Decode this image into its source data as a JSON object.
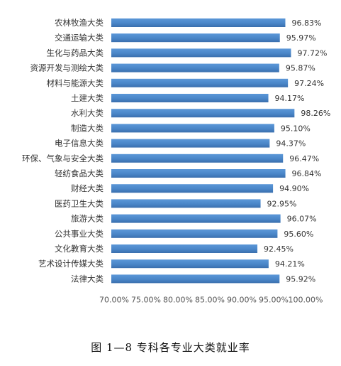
{
  "figure_caption": "图 1—8    专科各专业大类就业率",
  "colors": {
    "bar": "#4a86c8",
    "bar_dark": "#3a6fae",
    "text": "#333333"
  },
  "chart_data": {
    "type": "bar",
    "orientation": "horizontal",
    "title": "",
    "xlabel": "",
    "ylabel": "",
    "categories": [
      "农林牧渔大类",
      "交通运输大类",
      "生化与药品大类",
      "资源开发与测绘大类",
      "材料与能源大类",
      "土建大类",
      "水利大类",
      "制造大类",
      "电子信息大类",
      "环保、气象与安全大类",
      "轻纺食品大类",
      "财经大类",
      "医药卫生大类",
      "旅游大类",
      "公共事业大类",
      "文化教育大类",
      "艺术设计传媒大类",
      "法律大类"
    ],
    "values": [
      96.83,
      95.97,
      97.72,
      95.87,
      97.24,
      94.17,
      98.26,
      95.1,
      94.37,
      96.47,
      96.84,
      94.9,
      92.95,
      96.07,
      95.6,
      92.45,
      94.21,
      95.92
    ],
    "value_labels": [
      "96.83%",
      "95.97%",
      "97.72%",
      "95.87%",
      "97.24%",
      "94.17%",
      "98.26%",
      "95.10%",
      "94.37%",
      "96.47%",
      "96.84%",
      "94.90%",
      "92.95%",
      "96.07%",
      "95.60%",
      "92.45%",
      "94.21%",
      "95.92%"
    ],
    "xlim": [
      70,
      100
    ],
    "x_ticks": [
      70,
      75,
      80,
      85,
      90,
      95,
      100
    ],
    "x_tick_labels": [
      "70.00%",
      "75.00%",
      "80.00%",
      "85.00%",
      "90.00%",
      "95.00%",
      "100.00%"
    ],
    "grid": false,
    "legend": "none"
  }
}
